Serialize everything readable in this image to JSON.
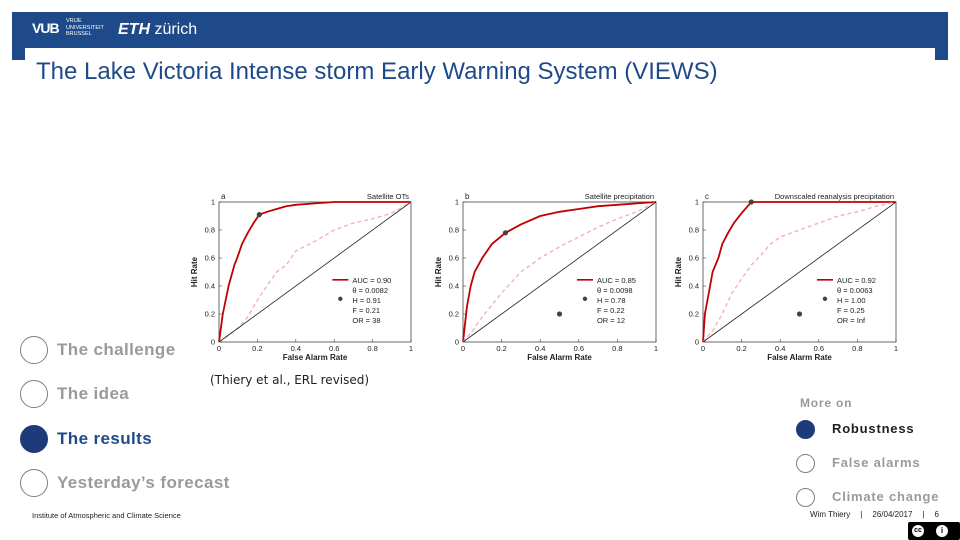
{
  "header": {
    "logo_vub": "VUB",
    "logo_vub_text": "VRIJE UNIVERSITEIT BRUSSEL",
    "logo_eth_bold": "ETH",
    "logo_eth_rest": "zürich"
  },
  "title": "The Lake Victoria Intense storm Early Warning System (VIEWS)",
  "nav": {
    "items": [
      {
        "label": "The challenge",
        "active": false
      },
      {
        "label": "The idea",
        "active": false
      },
      {
        "label": "The results",
        "active": true
      },
      {
        "label": "Yesterday’s forecast",
        "active": false
      }
    ]
  },
  "citation": "(Thiery et al., ERL revised)",
  "more_on": {
    "heading": "More on",
    "items": [
      {
        "label": "Robustness",
        "active": true
      },
      {
        "label": "False alarms",
        "active": false
      },
      {
        "label": "Climate change",
        "active": false
      }
    ]
  },
  "footer": {
    "institute": "Institute of Atmospheric and Climate Science",
    "author": "Wim Thiery",
    "separator": "|",
    "date": "26/04/2017",
    "page": "6"
  },
  "cc_badge": {
    "left_glyph": "cc",
    "right_glyph": "i"
  },
  "chart_data": [
    {
      "type": "line",
      "panel": "a",
      "title": "Satellite OTs",
      "xlabel": "False Alarm Rate",
      "ylabel": "Hit Rate",
      "xlim": [
        0,
        1
      ],
      "ylim": [
        0,
        1
      ],
      "xticks": [
        "0",
        "0.2",
        "0.4",
        "0.6",
        "0.8",
        "1"
      ],
      "yticks": [
        "0",
        "0.2",
        "0.4",
        "0.6",
        "0.8",
        "1"
      ],
      "stats": [
        "AUC = 0.90",
        "θ = 0.0082",
        "H = 0.91",
        "F = 0.21",
        "OR = 38"
      ],
      "series": [
        {
          "style": "solid",
          "color": "#c00000",
          "x": [
            0,
            0.01,
            0.02,
            0.05,
            0.08,
            0.1,
            0.12,
            0.15,
            0.18,
            0.21,
            0.25,
            0.3,
            0.35,
            0.4,
            0.5,
            0.6,
            0.7,
            0.8,
            0.9,
            1
          ],
          "y": [
            0,
            0.1,
            0.2,
            0.4,
            0.55,
            0.62,
            0.7,
            0.78,
            0.85,
            0.91,
            0.93,
            0.95,
            0.97,
            0.98,
            0.99,
            1,
            1,
            1,
            1,
            1
          ]
        },
        {
          "style": "dashed",
          "color": "#f2b3b3",
          "x": [
            0,
            0.05,
            0.1,
            0.15,
            0.2,
            0.25,
            0.3,
            0.35,
            0.4,
            0.5,
            0.6,
            0.7,
            0.8,
            0.9,
            1
          ],
          "y": [
            0,
            0.05,
            0.1,
            0.18,
            0.3,
            0.4,
            0.5,
            0.55,
            0.65,
            0.72,
            0.8,
            0.85,
            0.88,
            0.92,
            1
          ]
        },
        {
          "style": "diagonal",
          "color": "#222222",
          "x": [
            0,
            1
          ],
          "y": [
            0,
            1
          ]
        }
      ],
      "points": [
        {
          "x": 0.21,
          "y": 0.91,
          "color": "#444444"
        },
        {
          "x": 0.6,
          "y": 0.2,
          "color": "#444444"
        }
      ]
    },
    {
      "type": "line",
      "panel": "b",
      "title": "Satellite precipitation",
      "xlabel": "False Alarm Rate",
      "ylabel": "Hit Rate",
      "xlim": [
        0,
        1
      ],
      "ylim": [
        0,
        1
      ],
      "xticks": [
        "0",
        "0.2",
        "0.4",
        "0.6",
        "0.8",
        "1"
      ],
      "yticks": [
        "0",
        "0.2",
        "0.4",
        "0.6",
        "0.8",
        "1"
      ],
      "stats": [
        "AUC = 0.85",
        "θ = 0.0098",
        "H = 0.78",
        "F = 0.22",
        "OR = 12"
      ],
      "series": [
        {
          "style": "solid",
          "color": "#c00000",
          "x": [
            0,
            0.02,
            0.04,
            0.06,
            0.1,
            0.15,
            0.22,
            0.3,
            0.4,
            0.5,
            0.6,
            0.7,
            0.8,
            0.9,
            1
          ],
          "y": [
            0,
            0.25,
            0.4,
            0.5,
            0.6,
            0.7,
            0.78,
            0.84,
            0.9,
            0.93,
            0.95,
            0.97,
            0.98,
            0.99,
            1
          ]
        },
        {
          "style": "dashed",
          "color": "#f2b3b3",
          "x": [
            0,
            0.05,
            0.1,
            0.2,
            0.3,
            0.4,
            0.5,
            0.6,
            0.7,
            0.8,
            0.9,
            1
          ],
          "y": [
            0,
            0.08,
            0.18,
            0.35,
            0.5,
            0.6,
            0.68,
            0.75,
            0.82,
            0.88,
            0.93,
            1
          ]
        },
        {
          "style": "diagonal",
          "color": "#222222",
          "x": [
            0,
            1
          ],
          "y": [
            0,
            1
          ]
        }
      ],
      "points": [
        {
          "x": 0.22,
          "y": 0.78,
          "color": "#444444"
        },
        {
          "x": 0.5,
          "y": 0.2,
          "color": "#444444"
        }
      ]
    },
    {
      "type": "line",
      "panel": "c",
      "title": "Downscaled reanalysis precipitation",
      "xlabel": "False Alarm Rate",
      "ylabel": "Hit Rate",
      "xlim": [
        0,
        1
      ],
      "ylim": [
        0,
        1
      ],
      "xticks": [
        "0",
        "0.2",
        "0.4",
        "0.6",
        "0.8",
        "1"
      ],
      "yticks": [
        "0",
        "0.2",
        "0.4",
        "0.6",
        "0.8",
        "1"
      ],
      "stats": [
        "AUC = 0.92",
        "θ = 0.0063",
        "H = 1.00",
        "F = 0.25",
        "OR = Inf"
      ],
      "series": [
        {
          "style": "solid",
          "color": "#c00000",
          "x": [
            0,
            0.01,
            0.03,
            0.05,
            0.08,
            0.1,
            0.13,
            0.16,
            0.2,
            0.25,
            0.3,
            0.4,
            0.5,
            0.6,
            0.8,
            1
          ],
          "y": [
            0,
            0.2,
            0.35,
            0.5,
            0.6,
            0.7,
            0.78,
            0.85,
            0.92,
            1,
            1,
            1,
            1,
            1,
            1,
            1
          ]
        },
        {
          "style": "dashed",
          "color": "#f2b3b3",
          "x": [
            0,
            0.05,
            0.1,
            0.15,
            0.2,
            0.25,
            0.3,
            0.35,
            0.4,
            0.5,
            0.6,
            0.7,
            0.8,
            0.9,
            1
          ],
          "y": [
            0,
            0.08,
            0.2,
            0.35,
            0.45,
            0.55,
            0.62,
            0.7,
            0.75,
            0.8,
            0.85,
            0.9,
            0.93,
            0.97,
            1
          ]
        },
        {
          "style": "diagonal",
          "color": "#222222",
          "x": [
            0,
            1
          ],
          "y": [
            0,
            1
          ]
        }
      ],
      "points": [
        {
          "x": 0.25,
          "y": 1.0,
          "color": "#444444"
        },
        {
          "x": 0.5,
          "y": 0.2,
          "color": "#444444"
        }
      ]
    }
  ]
}
